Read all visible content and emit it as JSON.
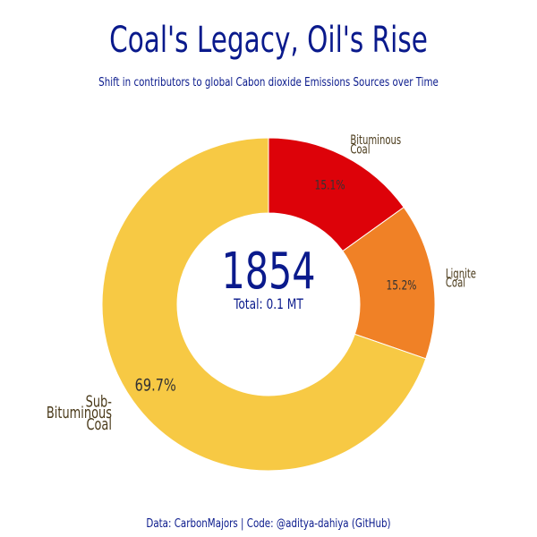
{
  "chart_data": {
    "type": "pie",
    "title": "Coal's Legacy, Oil's Rise",
    "subtitle": "Shift in contributors to global Cabon dioxide Emissions Sources over Time",
    "center_year": "1854",
    "center_total": "Total: 0.1 MT",
    "slices": [
      {
        "label": "Bituminous Coal",
        "label_lines": [
          "Bituminous",
          "Coal"
        ],
        "value": 15.1,
        "value_label": "15.1%",
        "color": "#dd0209"
      },
      {
        "label": "Lignite Coal",
        "label_lines": [
          "Lignite",
          "Coal"
        ],
        "value": 15.2,
        "value_label": "15.2%",
        "color": "#f08126"
      },
      {
        "label": "Sub-Bituminous Coal",
        "label_lines": [
          "Sub-",
          "Bituminous",
          "Coal"
        ],
        "value": 69.7,
        "value_label": "69.7%",
        "color": "#f7c944"
      }
    ]
  },
  "caption": "Data: CarbonMajors   |   Code: @aditya-dahiya (GitHub)"
}
